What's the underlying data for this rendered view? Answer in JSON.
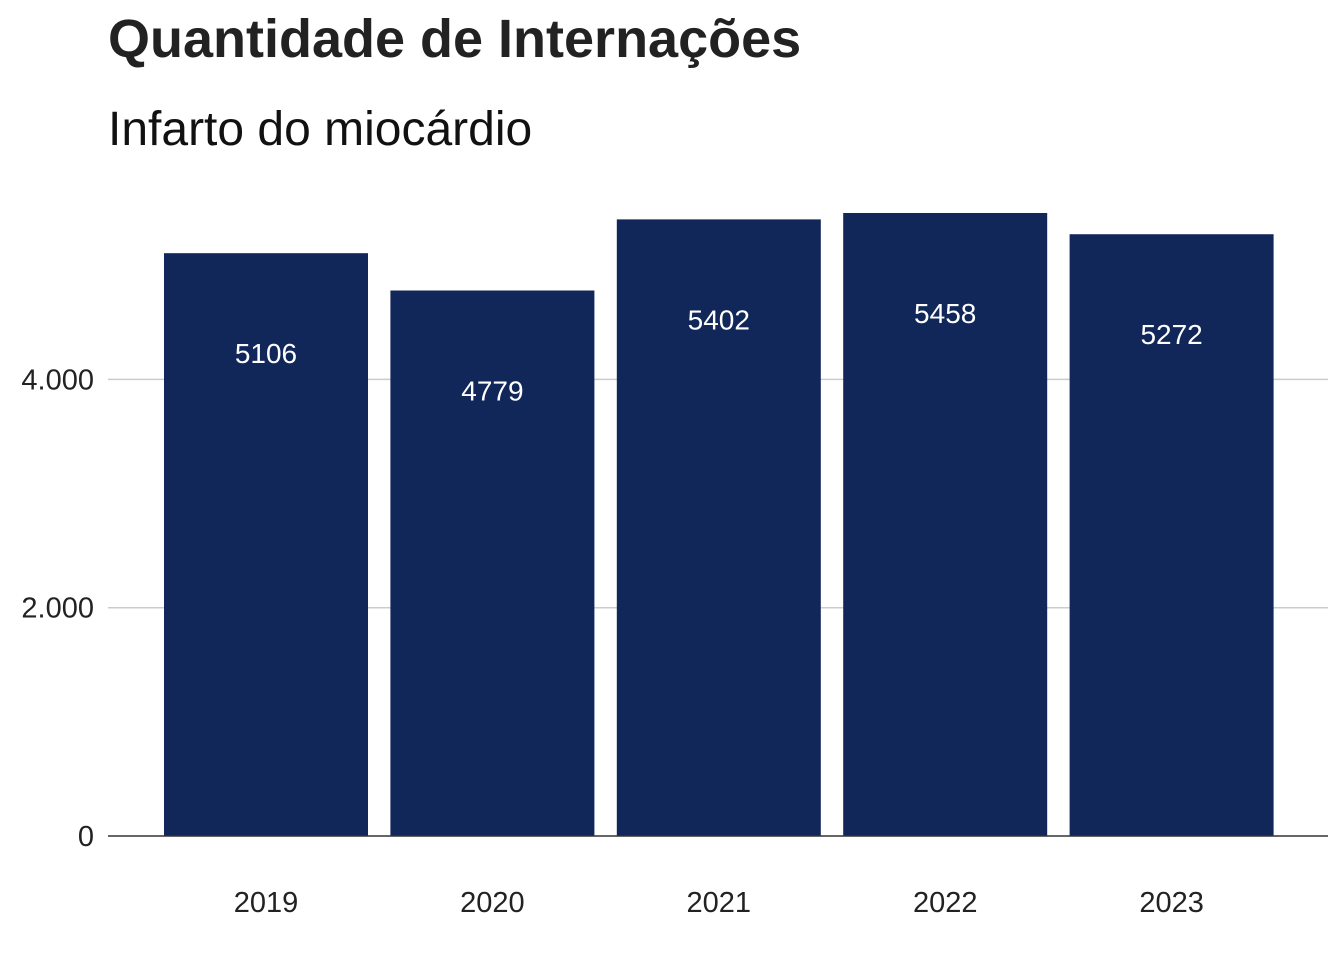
{
  "chart_data": {
    "type": "bar",
    "title": "Quantidade de Internações",
    "subtitle": "Infarto do miocárdio",
    "xlabel": "",
    "ylabel": "",
    "categories": [
      "2019",
      "2020",
      "2021",
      "2022",
      "2023"
    ],
    "values": [
      5106,
      4779,
      5402,
      5458,
      5272
    ],
    "data_labels": [
      "5106",
      "4779",
      "5402",
      "5458",
      "5272"
    ],
    "yticks": [
      {
        "value": 0,
        "label": "0"
      },
      {
        "value": 2000,
        "label": "2.000"
      },
      {
        "value": 4000,
        "label": "4.000"
      }
    ],
    "ylim": [
      0,
      5458
    ],
    "grid": "horizontal",
    "legend": "none",
    "colors": {
      "bar": "#11275a",
      "grid": "#cccccc",
      "axis": "#333333",
      "data_label": "#ffffff"
    }
  }
}
